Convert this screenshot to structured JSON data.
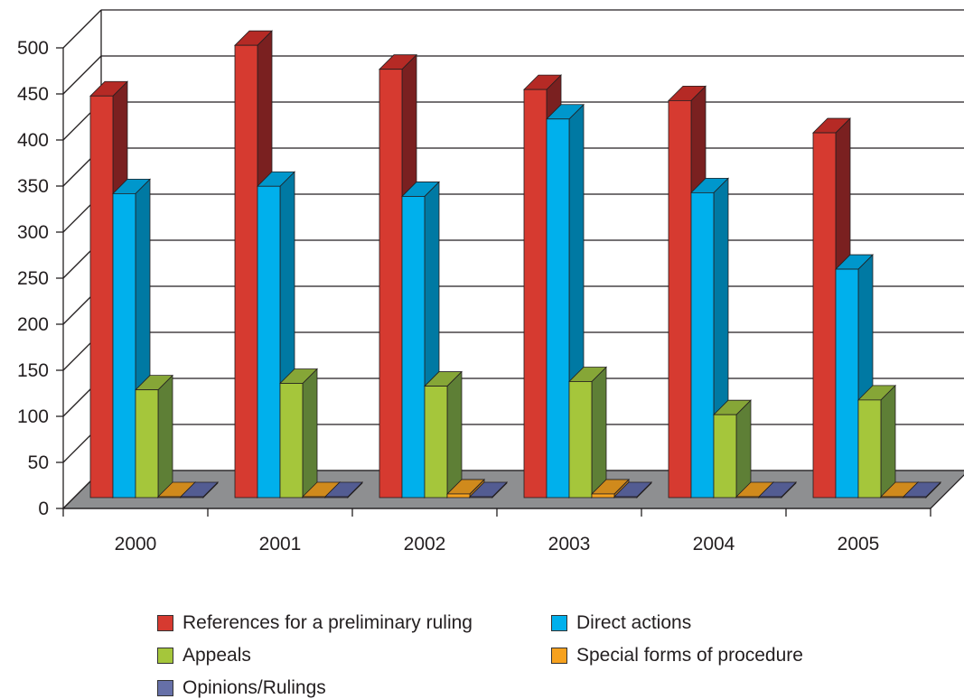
{
  "chart_data": {
    "type": "bar",
    "title": "",
    "xlabel": "",
    "ylabel": "",
    "ylim": [
      0,
      500
    ],
    "yticks": [
      "0",
      "50",
      "100",
      "150",
      "200",
      "250",
      "300",
      "350",
      "400",
      "450",
      "500"
    ],
    "categories": [
      "2000",
      "2001",
      "2002",
      "2003",
      "2004",
      "2005"
    ],
    "series": [
      {
        "name": "References for a preliminary ruling",
        "values": [
          436,
          491,
          465,
          443,
          431,
          396
        ],
        "color": "#d63a30",
        "side": "#7a2020",
        "top": "#b52a25"
      },
      {
        "name": "Direct actions",
        "values": [
          330,
          338,
          327,
          411,
          331,
          248
        ],
        "color": "#00b0ec",
        "side": "#0079a3",
        "top": "#0097cc"
      },
      {
        "name": "Appeals",
        "values": [
          117,
          124,
          121,
          126,
          90,
          106
        ],
        "color": "#a5c63b",
        "side": "#5e7f36",
        "top": "#86a637"
      },
      {
        "name": "Special forms of procedure",
        "values": [
          1,
          1,
          4,
          4,
          1,
          1
        ],
        "color": "#f6a11e",
        "side": "#a96f1a",
        "top": "#d08a1c"
      },
      {
        "name": "Opinions/Rulings",
        "values": [
          1,
          1,
          1,
          1,
          1,
          1
        ],
        "color": "#6670a8",
        "side": "#3d4372",
        "top": "#535c92"
      }
    ],
    "grid": true,
    "legend_position": "bottom"
  }
}
